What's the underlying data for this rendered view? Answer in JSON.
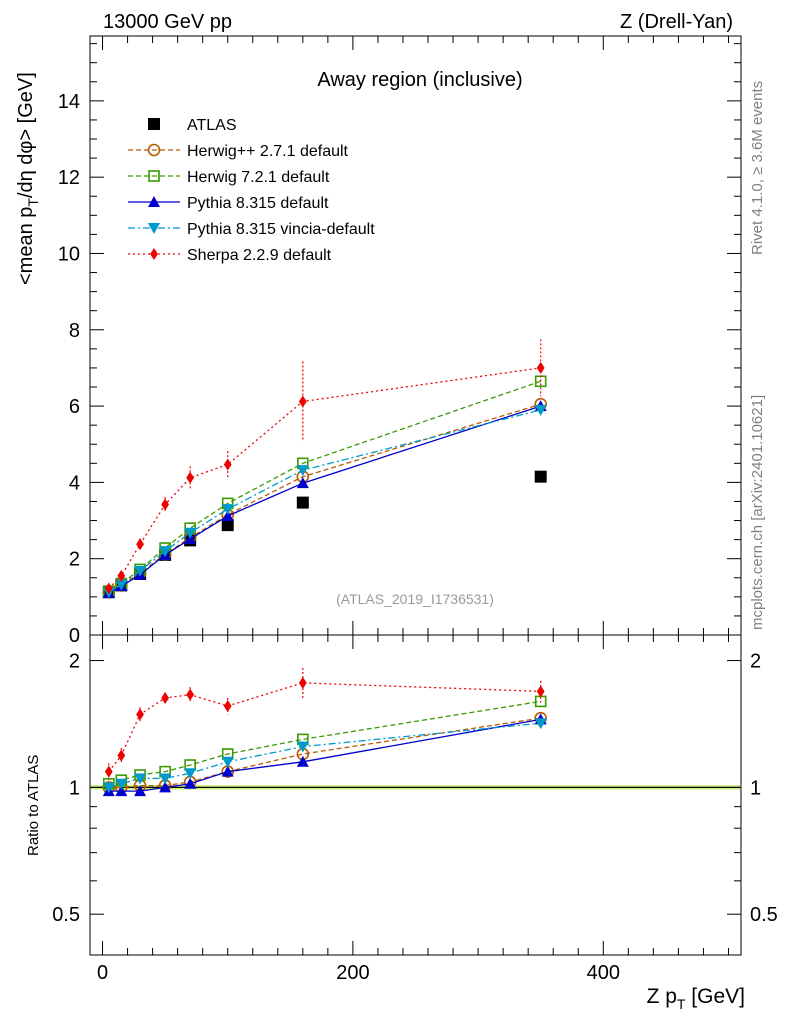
{
  "header": {
    "left": "13000 GeV pp",
    "right": "Z (Drell-Yan)"
  },
  "side_labels": {
    "rivet": "Rivet 4.1.0, ≥ 3.6M events",
    "mcplots": "mcplots.cern.ch [arXiv:2401.10621]"
  },
  "chart_data": [
    {
      "type": "line",
      "panel": "main",
      "title": "Away region (inclusive)",
      "analysis_id": "(ATLAS_2019_I1736531)",
      "ylabel": "<mean p_T/dη dφ> [GeV]",
      "ylabel_parts": {
        "a": "<mean p",
        "sub": "T",
        "b": "/dη dφ> [GeV]"
      },
      "xlabel": "",
      "xlim": [
        -10,
        510
      ],
      "ylim": [
        0,
        15.7
      ],
      "yticks": [
        "0",
        "2",
        "4",
        "6",
        "8",
        "10",
        "12",
        "14"
      ],
      "x": [
        5,
        15,
        30,
        50,
        70,
        100,
        160,
        350
      ],
      "series": [
        {
          "name": "ATLAS",
          "color": "#000000",
          "marker": "square-filled",
          "dash": "",
          "values": [
            1.12,
            1.3,
            1.6,
            2.1,
            2.48,
            2.88,
            3.47,
            4.15
          ]
        },
        {
          "name": "Herwig++ 2.7.1 default",
          "color": "#b85b00",
          "marker": "circle-open",
          "dash": "5,3",
          "values": [
            1.12,
            1.3,
            1.62,
            2.12,
            2.55,
            3.15,
            4.15,
            6.05
          ]
        },
        {
          "name": "Herwig 7.2.1 default",
          "color": "#3a9a00",
          "marker": "square-open",
          "dash": "5,3",
          "values": [
            1.15,
            1.35,
            1.72,
            2.28,
            2.8,
            3.45,
            4.5,
            6.65
          ]
        },
        {
          "name": "Pythia 8.315 default",
          "color": "#0000cc",
          "marker": "triangle-up",
          "dash": "",
          "values": [
            1.1,
            1.28,
            1.58,
            2.1,
            2.52,
            3.12,
            3.98,
            6.0
          ]
        },
        {
          "name": "Pythia 8.315 vincia-default",
          "color": "#0099cc",
          "marker": "triangle-down",
          "dash": "7,3,2,3",
          "values": [
            1.12,
            1.32,
            1.68,
            2.2,
            2.68,
            3.3,
            4.32,
            5.9
          ]
        },
        {
          "name": "Sherpa 2.2.9 default",
          "color": "#ee0000",
          "marker": "diamond",
          "dash": "2,3",
          "values": [
            1.22,
            1.55,
            2.38,
            3.42,
            4.12,
            4.47,
            6.12,
            7.0
          ]
        }
      ]
    },
    {
      "type": "line",
      "panel": "ratio",
      "ylabel": "Ratio to ATLAS",
      "xlabel": "Z p_T [GeV]",
      "xlabel_parts": {
        "a": "Z p",
        "sub": "T",
        "b": " [GeV]"
      },
      "xlim": [
        -10,
        510
      ],
      "ylim": [
        0.4,
        2.3
      ],
      "yscale": "log",
      "yticks": [
        "0.5",
        "1",
        "2"
      ],
      "xticks": [
        "0",
        "200",
        "400"
      ],
      "x": [
        5,
        15,
        30,
        50,
        70,
        100,
        160,
        350
      ],
      "series": [
        {
          "name": "Herwig++ 2.7.1 default",
          "color": "#b85b00",
          "marker": "circle-open",
          "dash": "5,3",
          "values": [
            1.0,
            1.0,
            1.01,
            1.01,
            1.03,
            1.09,
            1.2,
            1.46
          ]
        },
        {
          "name": "Herwig 7.2.1 default",
          "color": "#3a9a00",
          "marker": "square-open",
          "dash": "5,3",
          "values": [
            1.02,
            1.04,
            1.07,
            1.09,
            1.13,
            1.2,
            1.3,
            1.6
          ]
        },
        {
          "name": "Pythia 8.315 default",
          "color": "#0000cc",
          "marker": "triangle-up",
          "dash": "",
          "values": [
            0.98,
            0.98,
            0.98,
            1.0,
            1.02,
            1.09,
            1.15,
            1.45
          ]
        },
        {
          "name": "Pythia 8.315 vincia-default",
          "color": "#0099cc",
          "marker": "triangle-down",
          "dash": "7,3,2,3",
          "values": [
            1.0,
            1.02,
            1.05,
            1.05,
            1.08,
            1.15,
            1.25,
            1.42
          ]
        },
        {
          "name": "Sherpa 2.2.9 default",
          "color": "#ee0000",
          "marker": "diamond",
          "dash": "2,3",
          "values": [
            1.09,
            1.19,
            1.49,
            1.63,
            1.66,
            1.56,
            1.77,
            1.69
          ]
        }
      ]
    }
  ]
}
